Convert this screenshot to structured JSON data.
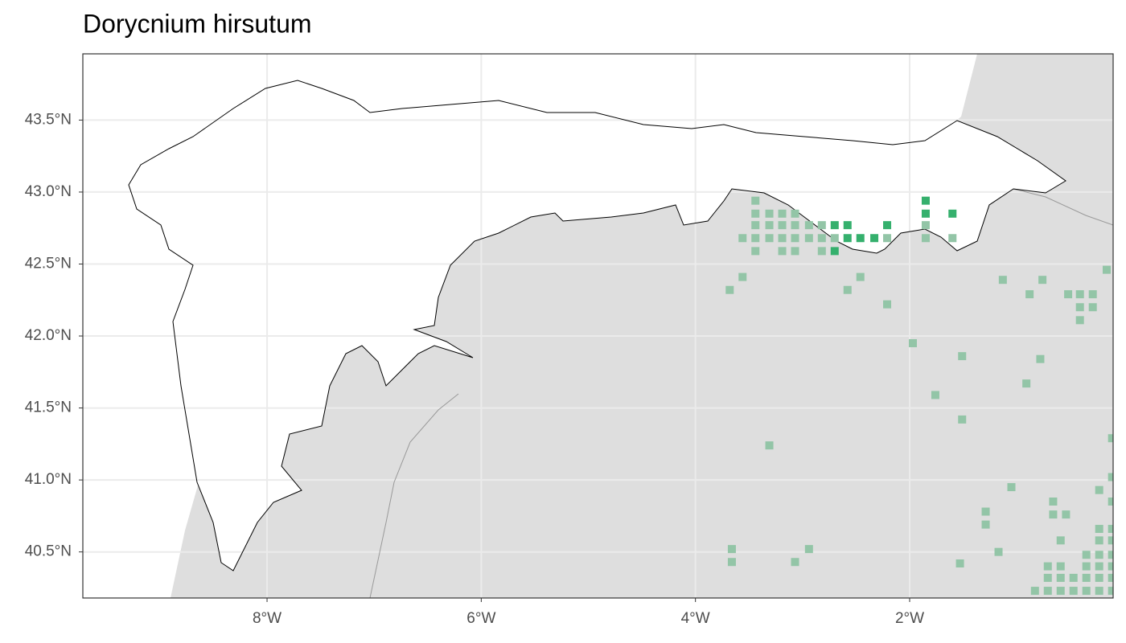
{
  "chart_data": {
    "type": "scatter",
    "title": "Dorycnium hirsutum",
    "xlim": [
      -9.72,
      -0.1
    ],
    "ylim": [
      40.18,
      43.96
    ],
    "xticks": [
      {
        "value": -8,
        "label": "8°W"
      },
      {
        "value": -6,
        "label": "6°W"
      },
      {
        "value": -4,
        "label": "4°W"
      },
      {
        "value": -2,
        "label": "2°W"
      }
    ],
    "yticks": [
      {
        "value": 40.5,
        "label": "40.5°N"
      },
      {
        "value": 41,
        "label": "41.0°N"
      },
      {
        "value": 41.5,
        "label": "41.5°N"
      },
      {
        "value": 42,
        "label": "42.0°N"
      },
      {
        "value": 42.5,
        "label": "42.5°N"
      },
      {
        "value": 43,
        "label": "43.0°N"
      },
      {
        "value": 43.5,
        "label": "43.5°N"
      }
    ],
    "grid": true,
    "series": [
      {
        "color": "#93c5a7",
        "x": [
          -3.44,
          -3.44,
          -3.31,
          -3.19,
          -3.07,
          -3.44,
          -3.31,
          -3.19,
          -3.07,
          -2.94,
          -2.82,
          -1.85,
          -3.56,
          -3.44,
          -3.31,
          -3.19,
          -3.07,
          -2.94,
          -2.82,
          -2.7,
          -2.21,
          -1.85,
          -1.6,
          -3.44,
          -3.19,
          -3.07,
          -2.82,
          -3.68,
          -3.56,
          -2.58,
          -2.46,
          -2.21,
          -1.97,
          -1.51,
          -1.76,
          -1.51,
          -3.31,
          -1.13,
          -0.88,
          -0.76,
          -0.52,
          -0.41,
          -0.29,
          -0.41,
          -0.29,
          -0.41,
          -0.16,
          -0.78,
          -0.91,
          -1.05,
          -1.29,
          -1.29,
          -1.17,
          -1.53,
          -0.66,
          -0.66,
          -0.54,
          -0.23,
          -0.11,
          -0.11,
          -0.11,
          -0.23,
          -0.11,
          -0.23,
          -0.11,
          -0.59,
          -0.35,
          -0.23,
          -0.11,
          -0.71,
          -0.59,
          -0.35,
          -0.23,
          -0.11,
          -0.71,
          -0.59,
          -0.47,
          -0.35,
          -0.23,
          -0.11,
          -0.83,
          -0.71,
          -0.59,
          -0.47,
          -0.35,
          -0.23,
          -0.11,
          -3.66,
          -3.66,
          -3.07,
          -2.94
        ],
        "values": [
          42.94,
          42.85,
          42.85,
          42.85,
          42.85,
          42.77,
          42.77,
          42.77,
          42.77,
          42.77,
          42.77,
          42.77,
          42.68,
          42.68,
          42.68,
          42.68,
          42.68,
          42.68,
          42.68,
          42.68,
          42.68,
          42.68,
          42.68,
          42.59,
          42.59,
          42.59,
          42.59,
          42.32,
          42.41,
          42.32,
          42.41,
          42.22,
          41.95,
          41.86,
          41.59,
          41.42,
          41.24,
          42.39,
          42.29,
          42.39,
          42.29,
          42.29,
          42.29,
          42.2,
          42.2,
          42.11,
          42.46,
          41.84,
          41.67,
          40.95,
          40.78,
          40.69,
          40.5,
          40.42,
          40.85,
          40.76,
          40.76,
          40.93,
          41.02,
          40.85,
          41.29,
          40.66,
          40.66,
          40.58,
          40.58,
          40.58,
          40.48,
          40.48,
          40.48,
          40.4,
          40.4,
          40.4,
          40.4,
          40.4,
          40.32,
          40.32,
          40.32,
          40.32,
          40.32,
          40.32,
          40.23,
          40.23,
          40.23,
          40.23,
          40.23,
          40.23,
          40.23,
          40.52,
          40.43,
          40.43,
          40.52
        ]
      },
      {
        "color": "#35b06d",
        "x": [
          -1.85,
          -1.85,
          -1.6,
          -2.7,
          -2.58,
          -2.21,
          -2.58,
          -2.46,
          -2.33,
          -2.7
        ],
        "values": [
          42.94,
          42.85,
          42.85,
          42.77,
          42.77,
          42.77,
          42.68,
          42.68,
          42.68,
          42.59
        ]
      }
    ]
  }
}
